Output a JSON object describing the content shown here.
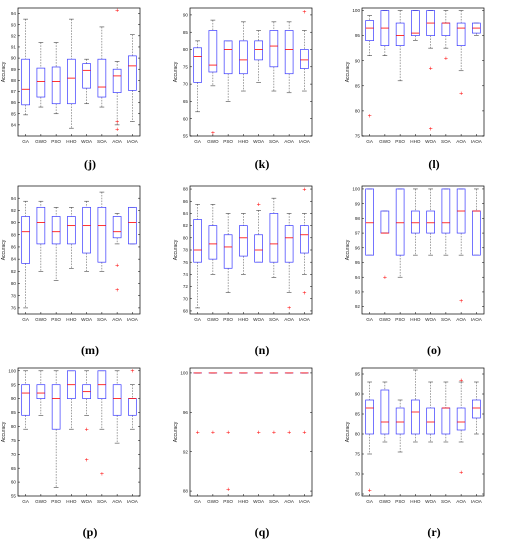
{
  "figure": {
    "colors": {
      "box": "#3a3aff",
      "median": "#ff0000",
      "whisker": "#444444",
      "outlier": "#ff0000",
      "axis": "#000000"
    }
  },
  "chart_data": [
    {
      "panel": "(j)",
      "type": "box",
      "ylabel": "Accuracy",
      "categories": [
        "GA",
        "GWO",
        "PSO",
        "HHO",
        "WOA",
        "SOA",
        "AOA",
        "IAOA"
      ],
      "ylim": [
        83,
        94.5
      ],
      "yticks": [
        84,
        85,
        86,
        87,
        88,
        89,
        90,
        91,
        92,
        93,
        94
      ],
      "boxes": [
        {
          "min": 84.9,
          "q1": 85.8,
          "median": 87.2,
          "q3": 89.9,
          "max": 93.5,
          "outliers": []
        },
        {
          "min": 85.6,
          "q1": 86.5,
          "median": 87.9,
          "q3": 89.1,
          "max": 91.4,
          "outliers": []
        },
        {
          "min": 85.0,
          "q1": 85.9,
          "median": 87.9,
          "q3": 89.2,
          "max": 91.4,
          "outliers": []
        },
        {
          "min": 83.7,
          "q1": 85.9,
          "median": 88.2,
          "q3": 89.9,
          "max": 93.5,
          "outliers": []
        },
        {
          "min": 85.9,
          "q1": 87.3,
          "median": 88.9,
          "q3": 89.5,
          "max": 89.9,
          "outliers": []
        },
        {
          "min": 85.6,
          "q1": 86.5,
          "median": 87.4,
          "q3": 89.9,
          "max": 92.8,
          "outliers": []
        },
        {
          "min": 84.0,
          "q1": 86.9,
          "median": 88.4,
          "q3": 89.0,
          "max": 89.7,
          "outliers": [
            94.3,
            84.3,
            83.6
          ]
        },
        {
          "min": 84.3,
          "q1": 87.1,
          "median": 89.3,
          "q3": 90.2,
          "max": 92.1,
          "outliers": []
        }
      ]
    },
    {
      "panel": "(k)",
      "type": "box",
      "ylabel": "Accuracy",
      "categories": [
        "GA",
        "GWO",
        "PSO",
        "HHO",
        "WOA",
        "SOA",
        "AOA",
        "IAOA"
      ],
      "ylim": [
        55,
        92
      ],
      "yticks": [
        55,
        60,
        65,
        70,
        75,
        80,
        85,
        90
      ],
      "boxes": [
        {
          "min": 62.0,
          "q1": 70.5,
          "median": 78.0,
          "q3": 80.5,
          "max": 82.5,
          "outliers": []
        },
        {
          "min": 69.5,
          "q1": 73.5,
          "median": 75.5,
          "q3": 85.5,
          "max": 88.5,
          "outliers": [
            56.0
          ]
        },
        {
          "min": 65.0,
          "q1": 73.0,
          "median": 80.0,
          "q3": 82.5,
          "max": 82.5,
          "outliers": []
        },
        {
          "min": 68.0,
          "q1": 73.0,
          "median": 77.0,
          "q3": 82.5,
          "max": 88.0,
          "outliers": []
        },
        {
          "min": 70.5,
          "q1": 77.0,
          "median": 80.0,
          "q3": 82.5,
          "max": 85.5,
          "outliers": []
        },
        {
          "min": 68.0,
          "q1": 75.0,
          "median": 81.0,
          "q3": 85.5,
          "max": 88.0,
          "outliers": []
        },
        {
          "min": 67.5,
          "q1": 73.0,
          "median": 80.0,
          "q3": 85.5,
          "max": 88.0,
          "outliers": []
        },
        {
          "min": 68.0,
          "q1": 74.5,
          "median": 77.0,
          "q3": 80.0,
          "max": 85.5,
          "outliers": [
            91.0
          ]
        }
      ]
    },
    {
      "panel": "(l)",
      "type": "box",
      "ylabel": "Accuracy",
      "categories": [
        "GA",
        "GWO",
        "PSO",
        "HHO",
        "WOA",
        "SOA",
        "AOA",
        "IAOA"
      ],
      "ylim": [
        75,
        100.5
      ],
      "yticks": [
        75,
        80,
        85,
        90,
        95,
        100
      ],
      "boxes": [
        {
          "min": 91.0,
          "q1": 94.0,
          "median": 96.5,
          "q3": 98.0,
          "max": 99.0,
          "outliers": [
            79.0
          ]
        },
        {
          "min": 91.0,
          "q1": 93.0,
          "median": 96.5,
          "q3": 100.0,
          "max": 100.0,
          "outliers": []
        },
        {
          "min": 86.0,
          "q1": 93.0,
          "median": 95.0,
          "q3": 97.5,
          "max": 100.0,
          "outliers": []
        },
        {
          "min": 94.0,
          "q1": 95.0,
          "median": 95.5,
          "q3": 100.0,
          "max": 100.0,
          "outliers": []
        },
        {
          "min": 92.5,
          "q1": 95.0,
          "median": 97.5,
          "q3": 100.0,
          "max": 100.0,
          "outliers": [
            88.5,
            76.5
          ]
        },
        {
          "min": 92.5,
          "q1": 95.0,
          "median": 97.5,
          "q3": 97.5,
          "max": 100.0,
          "outliers": [
            90.5
          ]
        },
        {
          "min": 88.0,
          "q1": 93.0,
          "median": 96.5,
          "q3": 97.5,
          "max": 100.0,
          "outliers": [
            83.5
          ]
        },
        {
          "min": 95.0,
          "q1": 95.5,
          "median": 96.5,
          "q3": 97.5,
          "max": 97.5,
          "outliers": []
        }
      ]
    },
    {
      "panel": "(m)",
      "type": "box",
      "ylabel": "Accuracy",
      "categories": [
        "GA",
        "GWO",
        "PSO",
        "HHO",
        "WOA",
        "SOA",
        "AOA",
        "IAOA"
      ],
      "ylim": [
        75,
        96
      ],
      "yticks": [
        76,
        78,
        80,
        82,
        84,
        86,
        88,
        90,
        92,
        94
      ],
      "boxes": [
        {
          "min": 76.0,
          "q1": 83.3,
          "median": 88.5,
          "q3": 91.0,
          "max": 93.5,
          "outliers": []
        },
        {
          "min": 82.0,
          "q1": 86.5,
          "median": 90.0,
          "q3": 92.5,
          "max": 93.5,
          "outliers": []
        },
        {
          "min": 80.5,
          "q1": 86.5,
          "median": 88.5,
          "q3": 91.0,
          "max": 92.5,
          "outliers": []
        },
        {
          "min": 82.5,
          "q1": 86.5,
          "median": 89.5,
          "q3": 91.0,
          "max": 92.5,
          "outliers": []
        },
        {
          "min": 82.0,
          "q1": 85.0,
          "median": 89.5,
          "q3": 92.5,
          "max": 93.5,
          "outliers": []
        },
        {
          "min": 82.0,
          "q1": 83.5,
          "median": 89.5,
          "q3": 92.5,
          "max": 95.0,
          "outliers": []
        },
        {
          "min": 86.5,
          "q1": 87.5,
          "median": 88.5,
          "q3": 91.0,
          "max": 91.5,
          "outliers": [
            83.0,
            79.0
          ]
        },
        {
          "min": 86.5,
          "q1": 86.5,
          "median": 90.0,
          "q3": 92.5,
          "max": 92.5,
          "outliers": []
        }
      ]
    },
    {
      "panel": "(n)",
      "type": "box",
      "ylabel": "Accuracy",
      "categories": [
        "GA",
        "GWO",
        "PSO",
        "HHO",
        "WOA",
        "SOA",
        "AOA",
        "IAOA"
      ],
      "ylim": [
        67.5,
        88.5
      ],
      "yticks": [
        68,
        70,
        72,
        74,
        76,
        78,
        80,
        82,
        84,
        86,
        88
      ],
      "boxes": [
        {
          "min": 68.5,
          "q1": 76.0,
          "median": 78.0,
          "q3": 83.0,
          "max": 85.5,
          "outliers": []
        },
        {
          "min": 74.0,
          "q1": 76.5,
          "median": 79.0,
          "q3": 82.0,
          "max": 85.5,
          "outliers": []
        },
        {
          "min": 71.0,
          "q1": 75.0,
          "median": 78.5,
          "q3": 80.5,
          "max": 84.0,
          "outliers": []
        },
        {
          "min": 74.0,
          "q1": 77.0,
          "median": 80.0,
          "q3": 82.0,
          "max": 84.0,
          "outliers": []
        },
        {
          "min": 76.0,
          "q1": 76.0,
          "median": 78.0,
          "q3": 80.5,
          "max": 84.5,
          "outliers": [
            85.5
          ]
        },
        {
          "min": 73.5,
          "q1": 76.0,
          "median": 79.0,
          "q3": 84.0,
          "max": 86.5,
          "outliers": []
        },
        {
          "min": 71.0,
          "q1": 76.0,
          "median": 80.0,
          "q3": 82.0,
          "max": 84.0,
          "outliers": [
            68.5
          ]
        },
        {
          "min": 74.0,
          "q1": 77.5,
          "median": 80.5,
          "q3": 82.0,
          "max": 84.0,
          "outliers": [
            88.0,
            71.0
          ]
        }
      ]
    },
    {
      "panel": "(o)",
      "type": "box",
      "ylabel": "Accuracy",
      "categories": [
        "GA",
        "GWO",
        "PSO",
        "HHO",
        "WOA",
        "SOA",
        "AOA",
        "IAOA"
      ],
      "ylim": [
        91.5,
        100.2
      ],
      "yticks": [
        92,
        93,
        94,
        95,
        96,
        97,
        98,
        99,
        100
      ],
      "boxes": [
        {
          "min": 95.5,
          "q1": 95.5,
          "median": 97.7,
          "q3": 100.0,
          "max": 100.0,
          "outliers": []
        },
        {
          "min": 97.0,
          "q1": 97.0,
          "median": 97.0,
          "q3": 98.5,
          "max": 98.5,
          "outliers": [
            94.0
          ]
        },
        {
          "min": 94.0,
          "q1": 95.5,
          "median": 97.7,
          "q3": 100.0,
          "max": 100.0,
          "outliers": []
        },
        {
          "min": 95.5,
          "q1": 97.0,
          "median": 97.7,
          "q3": 98.5,
          "max": 100.0,
          "outliers": []
        },
        {
          "min": 95.5,
          "q1": 97.0,
          "median": 97.7,
          "q3": 98.5,
          "max": 100.0,
          "outliers": []
        },
        {
          "min": 95.5,
          "q1": 97.0,
          "median": 97.7,
          "q3": 100.0,
          "max": 100.0,
          "outliers": []
        },
        {
          "min": 95.5,
          "q1": 97.0,
          "median": 98.5,
          "q3": 100.0,
          "max": 100.0,
          "outliers": [
            92.4
          ]
        },
        {
          "min": 95.5,
          "q1": 95.5,
          "median": 98.5,
          "q3": 98.5,
          "max": 100.0,
          "outliers": []
        }
      ]
    },
    {
      "panel": "(p)",
      "type": "box",
      "ylabel": "Accuracy",
      "categories": [
        "GA",
        "GWO",
        "PSO",
        "HHO",
        "WOA",
        "SOA",
        "AOA",
        "IAOA"
      ],
      "ylim": [
        55,
        101
      ],
      "yticks": [
        55,
        60,
        65,
        70,
        75,
        80,
        85,
        90,
        95,
        100
      ],
      "boxes": [
        {
          "min": 79.0,
          "q1": 84.0,
          "median": 92.0,
          "q3": 95.0,
          "max": 100.0,
          "outliers": []
        },
        {
          "min": 84.0,
          "q1": 90.0,
          "median": 92.0,
          "q3": 95.0,
          "max": 100.0,
          "outliers": []
        },
        {
          "min": 58.0,
          "q1": 79.0,
          "median": 90.0,
          "q3": 95.0,
          "max": 100.0,
          "outliers": []
        },
        {
          "min": 79.0,
          "q1": 90.0,
          "median": 95.0,
          "q3": 100.0,
          "max": 100.0,
          "outliers": []
        },
        {
          "min": 84.0,
          "q1": 90.0,
          "median": 92.5,
          "q3": 95.0,
          "max": 100.0,
          "outliers": [
            79.0,
            68.0
          ]
        },
        {
          "min": 79.0,
          "q1": 90.0,
          "median": 95.0,
          "q3": 100.0,
          "max": 100.0,
          "outliers": [
            63.0
          ]
        },
        {
          "min": 74.0,
          "q1": 84.0,
          "median": 90.0,
          "q3": 95.0,
          "max": 100.0,
          "outliers": []
        },
        {
          "min": 79.0,
          "q1": 84.0,
          "median": 90.0,
          "q3": 90.0,
          "max": 95.0,
          "outliers": [
            100.0
          ]
        }
      ]
    },
    {
      "panel": "(q)",
      "type": "box",
      "ylabel": "Accuracy",
      "categories": [
        "GA",
        "GWO",
        "PSO",
        "HHO",
        "WOA",
        "SOA",
        "AOA",
        "IAOA"
      ],
      "ylim": [
        87.5,
        100.5
      ],
      "yticks": [
        88,
        92,
        96,
        100
      ],
      "boxes": [
        {
          "min": 100.0,
          "q1": 100.0,
          "median": 100.0,
          "q3": 100.0,
          "max": 100.0,
          "outliers": [
            94.0
          ]
        },
        {
          "min": 100.0,
          "q1": 100.0,
          "median": 100.0,
          "q3": 100.0,
          "max": 100.0,
          "outliers": [
            94.0
          ]
        },
        {
          "min": 100.0,
          "q1": 100.0,
          "median": 100.0,
          "q3": 100.0,
          "max": 100.0,
          "outliers": [
            94.0,
            88.2
          ]
        },
        {
          "min": 100.0,
          "q1": 100.0,
          "median": 100.0,
          "q3": 100.0,
          "max": 100.0,
          "outliers": []
        },
        {
          "min": 100.0,
          "q1": 100.0,
          "median": 100.0,
          "q3": 100.0,
          "max": 100.0,
          "outliers": [
            94.0
          ]
        },
        {
          "min": 100.0,
          "q1": 100.0,
          "median": 100.0,
          "q3": 100.0,
          "max": 100.0,
          "outliers": [
            94.0
          ]
        },
        {
          "min": 100.0,
          "q1": 100.0,
          "median": 100.0,
          "q3": 100.0,
          "max": 100.0,
          "outliers": [
            94.0
          ]
        },
        {
          "min": 100.0,
          "q1": 100.0,
          "median": 100.0,
          "q3": 100.0,
          "max": 100.0,
          "outliers": [
            94.0
          ]
        }
      ]
    },
    {
      "panel": "(r)",
      "type": "box",
      "ylabel": "Accuracy",
      "categories": [
        "GA",
        "GWO",
        "PSO",
        "HHO",
        "WOA",
        "SOA",
        "AOA",
        "IAOA"
      ],
      "ylim": [
        64.5,
        96.5
      ],
      "yticks": [
        65,
        70,
        75,
        80,
        85,
        90,
        95
      ],
      "boxes": [
        {
          "min": 75.0,
          "q1": 80.0,
          "median": 86.5,
          "q3": 88.5,
          "max": 93.0,
          "outliers": [
            66.0
          ]
        },
        {
          "min": 78.0,
          "q1": 80.0,
          "median": 83.0,
          "q3": 91.0,
          "max": 93.0,
          "outliers": []
        },
        {
          "min": 75.5,
          "q1": 80.0,
          "median": 83.0,
          "q3": 86.5,
          "max": 88.5,
          "outliers": []
        },
        {
          "min": 78.0,
          "q1": 80.0,
          "median": 85.5,
          "q3": 88.5,
          "max": 96.0,
          "outliers": []
        },
        {
          "min": 78.0,
          "q1": 80.0,
          "median": 83.0,
          "q3": 86.5,
          "max": 93.0,
          "outliers": []
        },
        {
          "min": 78.0,
          "q1": 80.0,
          "median": 86.5,
          "q3": 86.5,
          "max": 93.0,
          "outliers": []
        },
        {
          "min": 78.0,
          "q1": 81.0,
          "median": 83.0,
          "q3": 86.5,
          "max": 93.0,
          "outliers": [
            93.5,
            70.5
          ]
        },
        {
          "min": 80.0,
          "q1": 84.0,
          "median": 86.5,
          "q3": 88.5,
          "max": 93.0,
          "outliers": []
        }
      ]
    }
  ]
}
